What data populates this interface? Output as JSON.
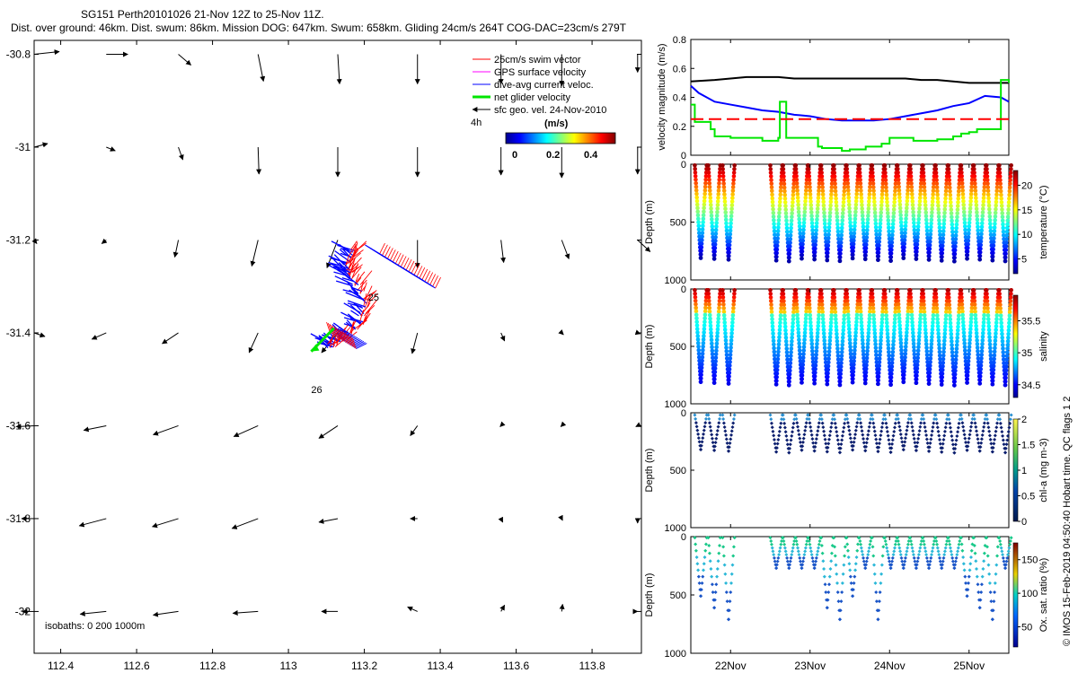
{
  "header": {
    "title": "SG151 Perth20101026 21-Nov 12Z to 25-Nov 11Z.",
    "subtitle": "Dist. over ground: 46km. Dist. swum: 86km. Mission DOG: 647km. Swum: 658km. Gliding 24cm/s 264T COG-DAC=23cm/s 279T"
  },
  "footer_note": "© IMOS 15-Feb-2019 04:50:40 Hobart time. QC flags 1  2",
  "colors": {
    "swim": "#ff0000",
    "gps": "#ff00ff",
    "dac": "#0000ff",
    "net": "#00e600",
    "geo": "#000000",
    "threshold": "#ff0000"
  },
  "chart_data": [
    {
      "type": "quiver",
      "name": "map",
      "xlim": [
        112.33,
        113.93
      ],
      "ylim": [
        -32.09,
        -30.77
      ],
      "xticks": [
        112.4,
        112.6,
        112.8,
        113,
        113.2,
        113.4,
        113.6,
        113.8
      ],
      "xtick_labels": [
        "112.4",
        "112.6",
        "112.8",
        "113",
        "113.2",
        "113.4",
        "113.6",
        "113.8"
      ],
      "yticks": [
        -30.8,
        -31,
        -31.2,
        -31.4,
        -31.6,
        -31.8,
        -32
      ],
      "ytick_labels": [
        "-30.8",
        "-31",
        "-31.2",
        "-31.4",
        "-31.6",
        "-31.8",
        "-32"
      ],
      "legend": {
        "position": "top-right",
        "entries": [
          "25cm/s swim vector",
          "GPS surface velocity",
          "dive-avg current veloc.",
          "net glider velocity",
          "sfc geo. vel. 24-Nov-2010"
        ],
        "time_note": "4h",
        "colorbar_title": "(m/s)",
        "colorbar_ticks": [
          "0",
          "0.2",
          "0.4"
        ]
      },
      "annotations": [
        {
          "text": "25",
          "lon": 113.21,
          "lat": -31.33
        },
        {
          "text": "26",
          "lon": 113.06,
          "lat": -31.53
        }
      ],
      "isobaths_label": "isobaths: 0   200   1000m",
      "geo_vectors": [
        {
          "row": -30.8,
          "u": [
            0.28,
            0.24,
            0.14,
            0.06,
            0.02,
            0,
            0,
            0,
            0
          ],
          "v": [
            0.03,
            0,
            -0.12,
            -0.3,
            -0.33,
            -0.33,
            -0.33,
            -0.35,
            -0.2
          ]
        },
        {
          "row": -31.0,
          "u": [
            0.15,
            0.1,
            0.05,
            0.01,
            0,
            0,
            0,
            0,
            0
          ],
          "v": [
            0.04,
            -0.04,
            -0.14,
            -0.3,
            -0.33,
            -0.33,
            -0.31,
            -0.34,
            -0.3
          ]
        },
        {
          "row": -31.2,
          "u": [
            0.03,
            -0.05,
            -0.04,
            -0.07,
            -0.12,
            0,
            0.03,
            0.08,
            0.14
          ],
          "v": [
            -0.04,
            -0.04,
            -0.19,
            -0.29,
            -0.31,
            -0.31,
            -0.25,
            -0.21,
            -0.13
          ]
        },
        {
          "row": -31.4,
          "u": [
            0.12,
            -0.16,
            -0.18,
            -0.1,
            -0.18,
            -0.06,
            0.04,
            0.02,
            0.03
          ],
          "v": [
            -0.04,
            -0.07,
            -0.12,
            -0.22,
            -0.22,
            -0.23,
            -0.09,
            -0.02,
            -0.01
          ]
        },
        {
          "row": -31.6,
          "u": [
            -0.2,
            -0.25,
            -0.28,
            -0.27,
            -0.21,
            -0.08,
            -0.01,
            -0.01,
            -0.02
          ],
          "v": [
            -0.01,
            -0.05,
            -0.1,
            -0.12,
            -0.14,
            -0.11,
            -0.01,
            -0.01,
            -0.01
          ]
        },
        {
          "row": -31.8,
          "u": [
            -0.14,
            -0.3,
            -0.29,
            -0.29,
            -0.21,
            -0.08,
            0.02,
            0.01,
            0
          ],
          "v": [
            0,
            -0.08,
            -0.09,
            -0.11,
            -0.04,
            0,
            -0.04,
            -0.02,
            -0.05
          ]
        },
        {
          "row": -32.0,
          "u": [
            -0.13,
            -0.29,
            -0.28,
            -0.28,
            -0.18,
            -0.11,
            0.04,
            0.01,
            0
          ],
          "v": [
            0,
            -0.03,
            -0.04,
            -0.02,
            0,
            0.05,
            0.07,
            0.08,
            0
          ]
        }
      ]
    },
    {
      "type": "line",
      "name": "velocity",
      "ylabel": "velocity magnitude (m/s)",
      "ylim": [
        0,
        0.8
      ],
      "yticks": [
        0,
        0.2,
        0.4,
        0.6,
        0.8
      ],
      "xlim": [
        21.5,
        25.5
      ],
      "series": [
        {
          "name": "total",
          "color": "#000000",
          "x": [
            21.5,
            21.8,
            22.0,
            22.2,
            22.4,
            22.6,
            22.8,
            23.0,
            23.2,
            23.4,
            23.6,
            23.8,
            24.0,
            24.2,
            24.4,
            24.6,
            24.8,
            25.0,
            25.2,
            25.5
          ],
          "y": [
            0.51,
            0.52,
            0.53,
            0.54,
            0.54,
            0.54,
            0.53,
            0.53,
            0.53,
            0.53,
            0.53,
            0.53,
            0.53,
            0.53,
            0.52,
            0.52,
            0.51,
            0.5,
            0.5,
            0.5
          ]
        },
        {
          "name": "dive-avg current",
          "color": "#0000ff",
          "x": [
            21.5,
            21.6,
            21.8,
            22.0,
            22.2,
            22.4,
            22.6,
            22.8,
            23.0,
            23.2,
            23.4,
            23.6,
            23.8,
            24.0,
            24.2,
            24.4,
            24.6,
            24.8,
            25.0,
            25.2,
            25.4,
            25.5
          ],
          "y": [
            0.48,
            0.43,
            0.37,
            0.35,
            0.33,
            0.31,
            0.3,
            0.28,
            0.27,
            0.25,
            0.24,
            0.24,
            0.24,
            0.25,
            0.27,
            0.29,
            0.31,
            0.34,
            0.36,
            0.41,
            0.4,
            0.37
          ]
        },
        {
          "name": "swim speed",
          "color": "#00e600",
          "x": [
            21.5,
            21.55,
            21.6,
            21.75,
            21.8,
            22.0,
            22.1,
            22.4,
            22.6,
            22.62,
            22.7,
            23.1,
            23.15,
            23.4,
            23.5,
            23.6,
            23.7,
            23.9,
            24.0,
            24.2,
            24.3,
            24.5,
            24.6,
            24.8,
            24.9,
            25.0,
            25.1,
            25.2,
            25.3,
            25.4,
            25.5
          ],
          "y": [
            0.35,
            0.23,
            0.23,
            0.18,
            0.13,
            0.12,
            0.12,
            0.1,
            0.12,
            0.37,
            0.12,
            0.06,
            0.05,
            0.03,
            0.04,
            0.04,
            0.06,
            0.08,
            0.12,
            0.12,
            0.1,
            0.1,
            0.11,
            0.13,
            0.15,
            0.16,
            0.18,
            0.18,
            0.18,
            0.52,
            0.5
          ]
        },
        {
          "name": "target speed",
          "color": "#ff0000",
          "dashed": true,
          "x": [
            21.5,
            22.0,
            22.4,
            25.5
          ],
          "y": [
            0.25,
            0.25,
            0.25,
            0.25
          ]
        }
      ]
    },
    {
      "type": "scatter",
      "name": "temperature",
      "ylabel": "Depth (m)",
      "cbar_label": "temperature (°C)",
      "ylim": [
        1000,
        0
      ],
      "yticks": [
        0,
        500,
        1000
      ],
      "cbar_range": [
        2,
        23
      ],
      "cbar_ticks": [
        5,
        10,
        15,
        20
      ]
    },
    {
      "type": "scatter",
      "name": "salinity",
      "ylabel": "Depth (m)",
      "cbar_label": "salinity",
      "ylim": [
        1000,
        0
      ],
      "yticks": [
        0,
        500,
        1000
      ],
      "cbar_range": [
        34.3,
        35.9
      ],
      "cbar_ticks": [
        34.5,
        35,
        35.5
      ]
    },
    {
      "type": "scatter",
      "name": "chlorophyll",
      "ylabel": "Depth (m)",
      "cbar_label": "chl-a (mg m-3)",
      "ylim": [
        1000,
        0
      ],
      "yticks": [
        0,
        500,
        1000
      ],
      "cbar_range": [
        0,
        2
      ],
      "cbar_ticks": [
        0,
        0.5,
        1,
        1.5,
        2
      ]
    },
    {
      "type": "scatter",
      "name": "oxygen",
      "ylabel": "Depth (m)",
      "cbar_label": "Ox. sat. ratio (%)",
      "ylim": [
        1000,
        0
      ],
      "yticks": [
        0,
        500,
        1000
      ],
      "cbar_range": [
        20,
        175
      ],
      "cbar_ticks": [
        50,
        100,
        150
      ]
    },
    {
      "type": "timeaxis",
      "name": "time-axis",
      "xlim": [
        21.5,
        25.5
      ],
      "ticks": [
        22,
        23,
        24,
        25
      ],
      "tick_labels": [
        "22Nov",
        "23Nov",
        "24Nov",
        "25Nov"
      ],
      "dive_starts": [
        21.55,
        21.72,
        21.9,
        22.5,
        22.66,
        22.82,
        22.98,
        23.14,
        23.3,
        23.46,
        23.62,
        23.78,
        23.94,
        24.1,
        24.26,
        24.42,
        24.58,
        24.74,
        24.9,
        25.06,
        25.22,
        25.38
      ]
    }
  ]
}
